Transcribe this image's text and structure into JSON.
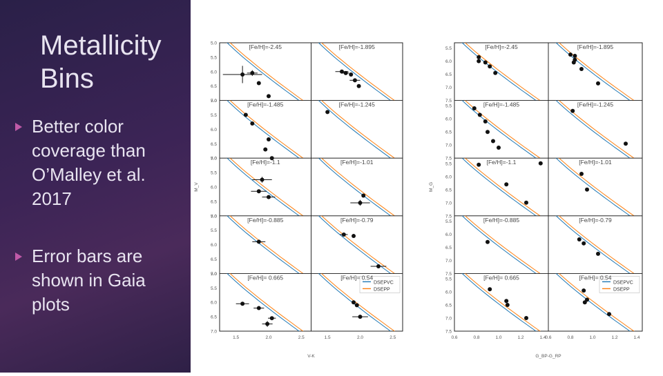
{
  "slide": {
    "title": "Metallicity Bins",
    "bullets": [
      "Better color coverage than O’Malley et al. 2017",
      "Error bars are shown in Gaia plots"
    ]
  },
  "colors": {
    "accent": "#c05aa8",
    "sidebar_bg": "#3c2456",
    "dsepvc": "#1f77b4",
    "dseplpp": "#ff7f0e"
  },
  "chart_data": [
    {
      "type": "scatter",
      "xlabel": "V-K",
      "ylabel": "M_V",
      "xlim": [
        1.25,
        2.65
      ],
      "xticks": [
        "1.5",
        "2.0",
        "2.5"
      ],
      "ylim": [
        7.0,
        5.0
      ],
      "yticks": [
        "5.0",
        "5.5",
        "6.0",
        "6.5",
        "7.0"
      ],
      "panels": [
        {
          "label": "[Fe/H]=-2.45",
          "points": [
            [
              1.6,
              6.1
            ],
            [
              1.75,
              6.05
            ],
            [
              1.85,
              6.4
            ],
            [
              2.0,
              6.85
            ]
          ],
          "errors": [
            [
              0.3,
              0.3
            ],
            [
              0.08,
              0.1
            ],
            [
              0,
              0
            ],
            [
              0,
              0
            ]
          ]
        },
        {
          "label": "[Fe/H]=-1.895",
          "points": [
            [
              1.72,
              6.0
            ],
            [
              1.78,
              6.05
            ],
            [
              1.92,
              6.3
            ],
            [
              1.98,
              6.5
            ],
            [
              1.86,
              6.1
            ]
          ],
          "errors": [
            [
              0.1,
              0.05
            ],
            [
              0.05,
              0.05
            ],
            [
              0.08,
              0.05
            ],
            [
              0,
              0
            ],
            [
              0,
              0
            ]
          ]
        },
        {
          "label": "[Fe/H]=-1.485",
          "points": [
            [
              1.65,
              5.5
            ],
            [
              1.75,
              5.8
            ],
            [
              2.0,
              6.35
            ],
            [
              1.95,
              6.7
            ],
            [
              2.05,
              7.0
            ]
          ],
          "errors": [
            [
              0,
              0
            ],
            [
              0,
              0
            ],
            [
              0,
              0
            ],
            [
              0,
              0
            ],
            [
              0,
              0
            ]
          ]
        },
        {
          "label": "[Fe/H]=-1.245",
          "points": [
            [
              1.5,
              5.4
            ]
          ],
          "errors": [
            [
              0,
              0
            ]
          ]
        },
        {
          "label": "[Fe/H]=-1.1",
          "points": [
            [
              1.9,
              5.75
            ],
            [
              1.85,
              6.15
            ],
            [
              2.0,
              6.35
            ]
          ],
          "errors": [
            [
              0.15,
              0.1
            ],
            [
              0.12,
              0.05
            ],
            [
              0.1,
              0.05
            ]
          ]
        },
        {
          "label": "[Fe/H]=-1.01",
          "points": [
            [
              2.05,
              6.3
            ],
            [
              2.0,
              6.55
            ]
          ],
          "errors": [
            [
              0,
              0
            ],
            [
              0.15,
              0.1
            ]
          ]
        },
        {
          "label": "[Fe/H]=-0.885",
          "points": [
            [
              1.85,
              5.9
            ]
          ],
          "errors": [
            [
              0.1,
              0.03
            ]
          ]
        },
        {
          "label": "[Fe/H]=-0.79",
          "points": [
            [
              1.75,
              5.65
            ],
            [
              1.9,
              5.7
            ],
            [
              2.28,
              6.75
            ]
          ],
          "errors": [
            [
              0.06,
              0.03
            ],
            [
              0,
              0
            ],
            [
              0.12,
              0.05
            ]
          ]
        },
        {
          "label": "[Fe/H]= 0.665",
          "points": [
            [
              1.6,
              6.05
            ],
            [
              1.85,
              6.2
            ],
            [
              2.05,
              6.55
            ],
            [
              1.98,
              6.75
            ]
          ],
          "errors": [
            [
              0.1,
              0.05
            ],
            [
              0.08,
              0.03
            ],
            [
              0.06,
              0.03
            ],
            [
              0.08,
              0.1
            ]
          ]
        },
        {
          "label": "[Fe/H]= 0.54",
          "points": [
            [
              1.9,
              6.0
            ],
            [
              1.95,
              6.1
            ],
            [
              2.0,
              6.5
            ]
          ],
          "errors": [
            [
              0,
              0
            ],
            [
              0,
              0
            ],
            [
              0.12,
              0.06
            ]
          ]
        }
      ],
      "series": [
        {
          "name": "DSEPVC"
        },
        {
          "name": "DSEPP"
        }
      ]
    },
    {
      "type": "scatter",
      "xlabel": "G_BP-G_RP",
      "ylabel": "M_G",
      "xlim": [
        0.6,
        1.45
      ],
      "xticks": [
        "0.6",
        "0.8",
        "1.0",
        "1.2",
        "1.4",
        "0.6",
        "0.8",
        "1.0",
        "1.2",
        "1.4"
      ],
      "ylim": [
        7.5,
        5.3
      ],
      "yticks": [
        "5.5",
        "6.0",
        "6.5",
        "7.0",
        "7.5"
      ],
      "panels": [
        {
          "label": "[Fe/H]=-2.45",
          "points": [
            [
              0.82,
              5.85
            ],
            [
              0.82,
              6.0
            ],
            [
              0.88,
              6.05
            ],
            [
              0.92,
              6.2
            ],
            [
              0.97,
              6.45
            ]
          ],
          "errors": []
        },
        {
          "label": "[Fe/H]=-1.895",
          "points": [
            [
              0.8,
              5.75
            ],
            [
              0.84,
              5.8
            ],
            [
              0.84,
              5.95
            ],
            [
              0.83,
              6.05
            ],
            [
              0.9,
              6.3
            ],
            [
              1.05,
              6.85
            ]
          ],
          "errors": []
        },
        {
          "label": "[Fe/H]=-1.485",
          "points": [
            [
              0.78,
              5.6
            ],
            [
              0.83,
              5.85
            ],
            [
              0.88,
              6.1
            ],
            [
              0.9,
              6.5
            ],
            [
              0.95,
              6.85
            ],
            [
              1.0,
              7.1
            ],
            [
              1.38,
              7.7
            ]
          ],
          "errors": []
        },
        {
          "label": "[Fe/H]=-1.245",
          "points": [
            [
              0.82,
              5.7
            ],
            [
              1.3,
              6.95
            ]
          ],
          "errors": []
        },
        {
          "label": "[Fe/H]=-1.1",
          "points": [
            [
              0.82,
              5.55
            ],
            [
              1.07,
              6.3
            ],
            [
              1.25,
              7.0
            ]
          ],
          "errors": []
        },
        {
          "label": "[Fe/H]=-1.01",
          "points": [
            [
              0.9,
              5.9
            ],
            [
              0.95,
              6.5
            ]
          ],
          "errors": []
        },
        {
          "label": "[Fe/H]=-0.885",
          "points": [
            [
              0.9,
              6.3
            ]
          ],
          "errors": []
        },
        {
          "label": "[Fe/H]=-0.79",
          "points": [
            [
              0.88,
              6.2
            ],
            [
              0.92,
              6.35
            ],
            [
              1.05,
              6.75
            ]
          ],
          "errors": []
        },
        {
          "label": "[Fe/H]= 0.665",
          "points": [
            [
              0.92,
              5.9
            ],
            [
              1.07,
              6.35
            ],
            [
              1.08,
              6.5
            ],
            [
              1.25,
              7.0
            ]
          ],
          "errors": []
        },
        {
          "label": "[Fe/H]= 0.54",
          "points": [
            [
              0.92,
              5.95
            ],
            [
              0.95,
              6.3
            ],
            [
              0.93,
              6.4
            ],
            [
              1.15,
              6.85
            ]
          ],
          "errors": []
        }
      ],
      "series": [
        {
          "name": "DSEPVC"
        },
        {
          "name": "DSEPP"
        }
      ]
    }
  ]
}
